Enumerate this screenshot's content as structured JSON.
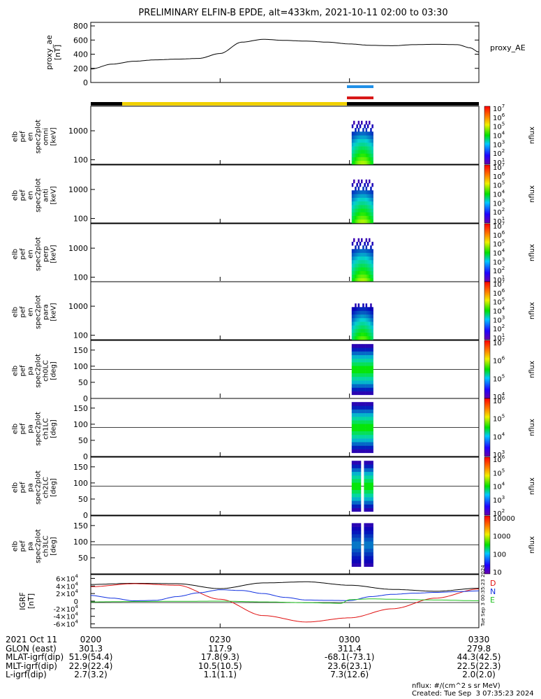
{
  "title": "PRELIMINARY ELFIN-B EPDE, alt=433km, 2021-10-11 02:00 to 03:30",
  "proxy_ae": {
    "ylabel_lines": [
      "proxy_ae",
      "[nT]"
    ],
    "legend": "proxy_AE",
    "yticks": [
      "0",
      "200",
      "400",
      "600",
      "800"
    ],
    "ylim": [
      0,
      850
    ]
  },
  "spectrogram_panels": [
    {
      "ylabel_lines": [
        "elb",
        "pef",
        "en",
        "spec2plot",
        "omni",
        "[keV]"
      ],
      "yticks": [
        "100",
        "1000"
      ],
      "cbar_ticks": [
        "10",
        "10",
        "10",
        "10",
        "10",
        "10",
        "10"
      ],
      "cbar_exps": [
        "1",
        "2",
        "3",
        "4",
        "5",
        "6",
        "7"
      ],
      "cbar_label": "nflux"
    },
    {
      "ylabel_lines": [
        "elb",
        "pef",
        "en",
        "spec2plot",
        "anti",
        "[keV]"
      ],
      "yticks": [
        "100",
        "1000"
      ],
      "cbar_ticks": [
        "10",
        "10",
        "10",
        "10",
        "10",
        "10",
        "10"
      ],
      "cbar_exps": [
        "1",
        "2",
        "3",
        "4",
        "5",
        "6",
        "7"
      ],
      "cbar_label": "nflux"
    },
    {
      "ylabel_lines": [
        "elb",
        "pef",
        "en",
        "spec2plot",
        "perp",
        "[keV]"
      ],
      "yticks": [
        "100",
        "1000"
      ],
      "cbar_ticks": [
        "10",
        "10",
        "10",
        "10",
        "10",
        "10",
        "10"
      ],
      "cbar_exps": [
        "1",
        "2",
        "3",
        "4",
        "5",
        "6",
        "7"
      ],
      "cbar_label": "nflux"
    },
    {
      "ylabel_lines": [
        "elb",
        "pef",
        "en",
        "spec2plot",
        "para",
        "[keV]"
      ],
      "yticks": [
        "100",
        "1000"
      ],
      "cbar_ticks": [
        "10",
        "10",
        "10",
        "10",
        "10",
        "10",
        "10"
      ],
      "cbar_exps": [
        "1",
        "2",
        "3",
        "4",
        "5",
        "6",
        "7"
      ],
      "cbar_label": "nflux"
    },
    {
      "ylabel_lines": [
        "elb",
        "pef",
        "pa",
        "spec2plot",
        "ch0LC",
        "[deg]"
      ],
      "yticks": [
        "0",
        "50",
        "100",
        "150"
      ],
      "cbar_ticks": [
        "10",
        "10",
        "10",
        "10"
      ],
      "cbar_exps": [
        "4",
        "5",
        "6",
        "7"
      ],
      "cbar_label": "nflux"
    },
    {
      "ylabel_lines": [
        "elb",
        "pef",
        "pa",
        "spec2plot",
        "ch1LC",
        "[deg]"
      ],
      "yticks": [
        "0",
        "50",
        "100",
        "150"
      ],
      "cbar_ticks": [
        "10",
        "10",
        "10",
        "10"
      ],
      "cbar_exps": [
        "3",
        "4",
        "5",
        "6"
      ],
      "cbar_label": "nflux"
    },
    {
      "ylabel_lines": [
        "elb",
        "pef",
        "pa",
        "spec2plot",
        "ch2LC",
        "[deg]"
      ],
      "yticks": [
        "0",
        "50",
        "100",
        "150"
      ],
      "cbar_ticks": [
        "10",
        "10",
        "10",
        "10",
        "10"
      ],
      "cbar_exps": [
        "2",
        "3",
        "4",
        "5",
        "6"
      ],
      "cbar_label": "nflux"
    },
    {
      "ylabel_lines": [
        "elb",
        "pef",
        "pa",
        "spec2plot",
        "ch3LC",
        "[deg]"
      ],
      "yticks": [
        "50",
        "100",
        "150"
      ],
      "cbar_ticks": [
        "10",
        "100",
        "1000",
        "10000"
      ],
      "cbar_exps": [
        "",
        "",
        "",
        ""
      ],
      "cbar_label": "nflux"
    }
  ],
  "igrf": {
    "ylabel_lines": [
      "IGRF",
      "[nT]"
    ],
    "yticks": [
      "-6",
      "-4",
      "-2",
      "0",
      "2",
      "4",
      "6"
    ],
    "legend": [
      {
        "name": "D",
        "color": "#e01010"
      },
      {
        "name": "N",
        "color": "#1030e0"
      },
      {
        "name": "E",
        "color": "#20c020"
      }
    ],
    "side_stamp": "Tue Sep  3 00:35:23 2024"
  },
  "x_axis": {
    "ticks": [
      "0200",
      "0230",
      "0300",
      "0330"
    ],
    "tick_minutes": [
      0,
      30,
      60,
      90
    ]
  },
  "bottom_table": {
    "row_labels": [
      "2021 Oct 11",
      "GLON (east)",
      "MLAT-igrf(dip)",
      "MLT-igrf(dip)",
      "L-igrf(dip)"
    ],
    "columns": [
      [
        "0200",
        "301.3",
        "51.9(54.4)",
        "22.9(22.4)",
        "2.7(3.2)"
      ],
      [
        "0230",
        "117.9",
        "17.8(9.3)",
        "10.5(10.5)",
        "1.1(1.1)"
      ],
      [
        "0300",
        "311.4",
        "-68.1(-73.1)",
        "23.6(23.1)",
        "7.3(12.6)"
      ],
      [
        "0330",
        "279.8",
        "44.3(42.5)",
        "22.5(22.3)",
        "2.0(2.0)"
      ]
    ]
  },
  "footer": {
    "units": "nflux: #/(cm^2 s sr MeV)",
    "created": "Created: Tue Sep  3 07:35:23 2024"
  },
  "colors": {
    "state_bar_yellow": "#f0d000",
    "state_bar_black": "#000000",
    "marker_blue": "#2090e8",
    "marker_red": "#d81818"
  },
  "chart_data": {
    "type": "line",
    "title": "PRELIMINARY ELFIN-B EPDE, alt=433km, 2021-10-11 02:00 to 03:30",
    "x_unit": "minutes after 02:00",
    "series": [
      {
        "name": "proxy_AE",
        "x": [
          0,
          5,
          10,
          15,
          20,
          25,
          30,
          35,
          40,
          45,
          50,
          55,
          60,
          65,
          70,
          75,
          80,
          85,
          88,
          90
        ],
        "values": [
          190,
          260,
          300,
          320,
          330,
          340,
          410,
          570,
          610,
          595,
          585,
          570,
          545,
          525,
          520,
          535,
          540,
          535,
          490,
          430
        ]
      },
      {
        "name": "D",
        "x": [
          0,
          10,
          20,
          30,
          40,
          50,
          60,
          70,
          80,
          90
        ],
        "values": [
          38000,
          46000,
          42000,
          5000,
          -38000,
          -55000,
          -44000,
          -20000,
          8000,
          32000
        ]
      },
      {
        "name": "N",
        "x": [
          0,
          5,
          10,
          15,
          20,
          25,
          30,
          35,
          40,
          45,
          50,
          55,
          60,
          65,
          70,
          75,
          80,
          85,
          90
        ],
        "values": [
          15000,
          8000,
          1000,
          2000,
          12000,
          22000,
          30000,
          28000,
          20000,
          10000,
          3000,
          2000,
          1500,
          12000,
          18000,
          21000,
          23000,
          25000,
          27000
        ]
      },
      {
        "name": "E",
        "x": [
          0,
          10,
          20,
          30,
          40,
          50,
          55,
          58,
          60,
          65,
          70,
          80,
          90
        ],
        "values": [
          -2000,
          -1000,
          -500,
          0,
          -2000,
          -4000,
          -5000,
          -6000,
          4000,
          6000,
          5000,
          3000,
          1000
        ]
      },
      {
        "name": "IGRF magnitude",
        "x": [
          0,
          10,
          20,
          30,
          40,
          50,
          60,
          70,
          80,
          90
        ],
        "values": [
          44000,
          47000,
          46000,
          33000,
          48000,
          51000,
          42000,
          31000,
          26000,
          34000
        ]
      }
    ],
    "xlim": [
      0,
      90
    ],
    "panels": [
      "proxy_ae",
      "omni",
      "anti",
      "perp",
      "para",
      "ch0LC",
      "ch1LC",
      "ch2LC",
      "ch3LC",
      "IGRF"
    ]
  }
}
